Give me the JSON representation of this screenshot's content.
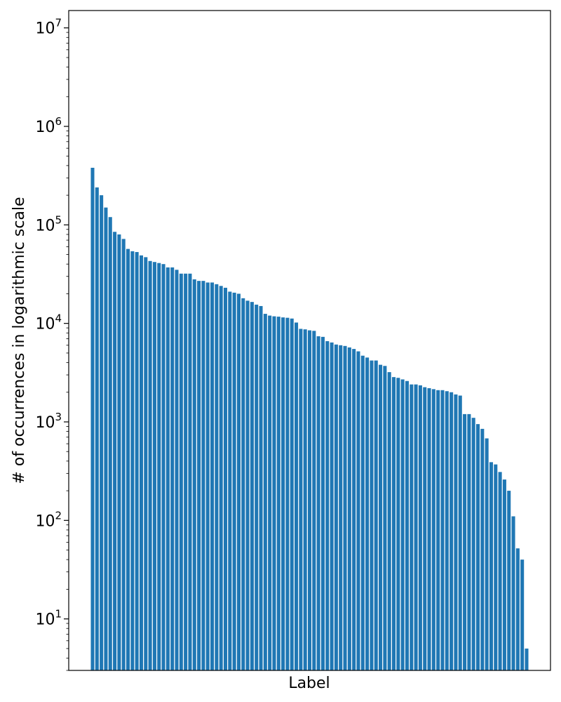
{
  "chart_data": {
    "type": "bar",
    "title": "",
    "xlabel": "Label",
    "ylabel": "# of occurrences in logarithmic scale",
    "yscale": "log",
    "ylim": [
      3,
      15000000
    ],
    "yticks": [
      10,
      100,
      1000,
      10000,
      100000,
      1000000,
      10000000
    ],
    "ytick_labels": [
      {
        "base": "10",
        "exp": "1"
      },
      {
        "base": "10",
        "exp": "2"
      },
      {
        "base": "10",
        "exp": "3"
      },
      {
        "base": "10",
        "exp": "4"
      },
      {
        "base": "10",
        "exp": "5"
      },
      {
        "base": "10",
        "exp": "6"
      },
      {
        "base": "10",
        "exp": "7"
      }
    ],
    "bar_color": "#1f77b4",
    "grid": false,
    "values": [
      380000,
      240000,
      200000,
      150000,
      120000,
      85000,
      80000,
      72000,
      57000,
      54000,
      53000,
      49000,
      47000,
      43000,
      42000,
      41000,
      40000,
      37000,
      37000,
      35000,
      32000,
      32000,
      32000,
      28000,
      27000,
      27000,
      26000,
      26000,
      25000,
      24000,
      23000,
      21000,
      20500,
      20000,
      18000,
      17000,
      16500,
      15500,
      15000,
      12500,
      12000,
      11800,
      11700,
      11500,
      11400,
      11200,
      10200,
      8800,
      8700,
      8500,
      8400,
      7400,
      7300,
      6600,
      6400,
      6100,
      6000,
      5900,
      5700,
      5500,
      5200,
      4700,
      4500,
      4200,
      4200,
      3800,
      3700,
      3200,
      2850,
      2800,
      2700,
      2600,
      2400,
      2400,
      2350,
      2250,
      2200,
      2150,
      2100,
      2100,
      2050,
      2000,
      1900,
      1850,
      1200,
      1200,
      1100,
      950,
      850,
      680,
      390,
      370,
      310,
      260,
      200,
      110,
      52,
      40,
      5
    ]
  }
}
